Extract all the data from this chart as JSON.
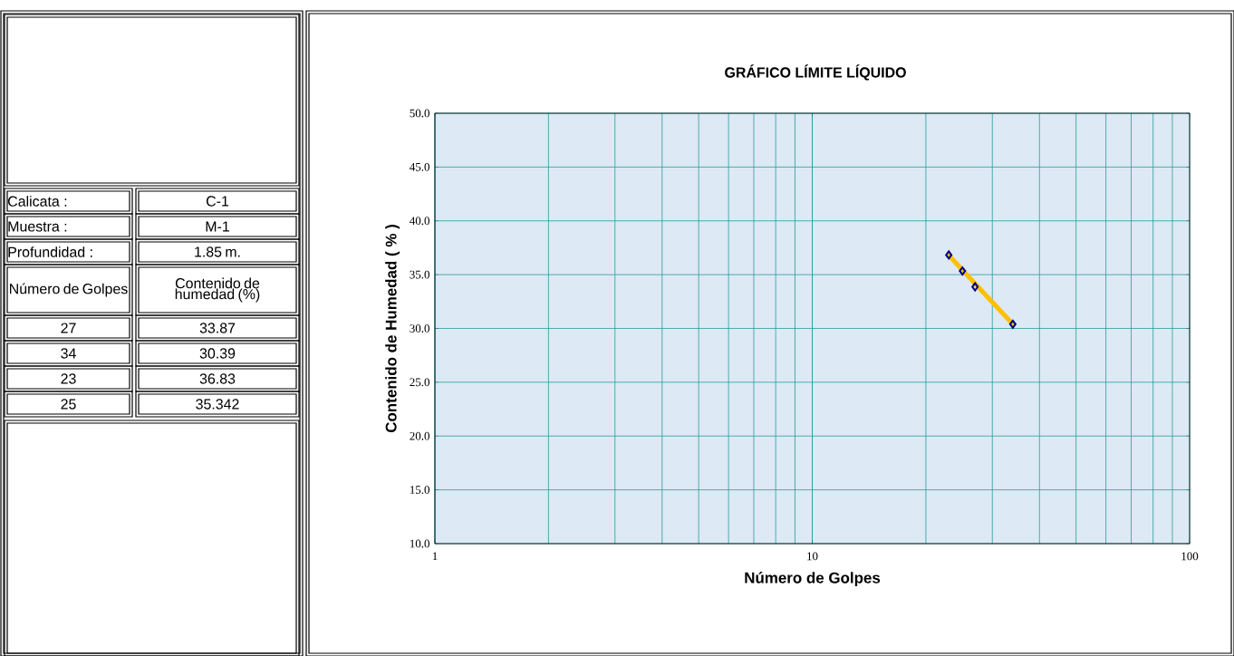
{
  "chart_data": [
    {
      "type": "other",
      "annotations": [
        "Calicata :",
        "C-1",
        "Muestra :",
        "M-1",
        "Profundidad :",
        "1.85 m.",
        "Número de Golpes",
        "Contenido de humedad (%)",
        "27",
        "33.87",
        "34",
        "30.39",
        "23",
        "36.83",
        "25",
        "35.342"
      ]
    },
    {
      "type": "scatter",
      "title": "GRÁFICO LÍMITE LÍQUIDO",
      "xlabel": "Número de Golpes",
      "ylabel": "Contenido de Humedad ( % )",
      "log": "x",
      "grid": true,
      "xlim": [
        1,
        100
      ],
      "xticks": [
        1,
        10,
        100
      ],
      "ylim": [
        10,
        50
      ],
      "yticks": [
        {
          "value": 10,
          "label": "10.0"
        },
        {
          "value": 15,
          "label": "15.0"
        },
        {
          "value": 20,
          "label": "20.0"
        },
        {
          "value": 25,
          "label": "25.0"
        },
        {
          "value": 30,
          "label": "30.0"
        },
        {
          "value": 35,
          "label": "35.0"
        },
        {
          "value": 40,
          "label": "40.0"
        },
        {
          "value": 45,
          "label": "45.0"
        },
        {
          "value": 50,
          "label": "50.0"
        }
      ],
      "series": [
        {
          "color": "#000080",
          "marker": "diamond",
          "x": [
            27,
            34,
            23,
            25
          ],
          "values": [
            33.87,
            30.39,
            36.83,
            35.342
          ]
        },
        {
          "type": "line",
          "color": "#ffc000",
          "x": [
            23,
            34
          ],
          "values": [
            36.8,
            30.4
          ]
        }
      ]
    }
  ]
}
